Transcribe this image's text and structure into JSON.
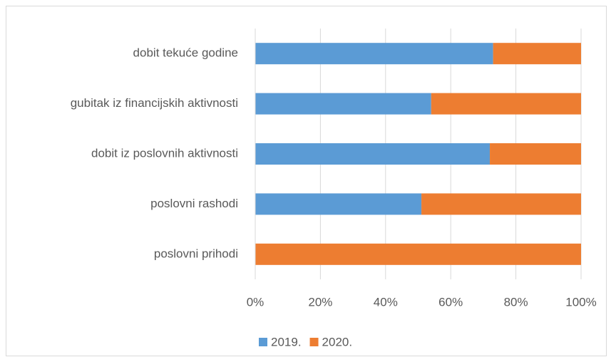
{
  "chart_data": {
    "type": "stacked_barh",
    "categories": [
      "dobit tekuće godine",
      "gubitak iz financijskih aktivnosti",
      "dobit iz poslovnih aktivnosti",
      "poslovni rashodi",
      "poslovni prihodi"
    ],
    "series": [
      {
        "name": "2019.",
        "color": "#5b9bd5",
        "values": [
          73,
          54,
          72,
          51,
          0
        ]
      },
      {
        "name": "2020.",
        "color": "#ed7d31",
        "values": [
          27,
          46,
          28,
          49,
          100
        ]
      }
    ],
    "xlim": [
      0,
      100
    ],
    "xticks": [
      {
        "value": 0,
        "label": "0%"
      },
      {
        "value": 20,
        "label": "20%"
      },
      {
        "value": 40,
        "label": "40%"
      },
      {
        "value": 60,
        "label": "60%"
      },
      {
        "value": 80,
        "label": "80%"
      },
      {
        "value": 100,
        "label": "100%"
      }
    ],
    "grid": true,
    "legend": "bottom"
  }
}
